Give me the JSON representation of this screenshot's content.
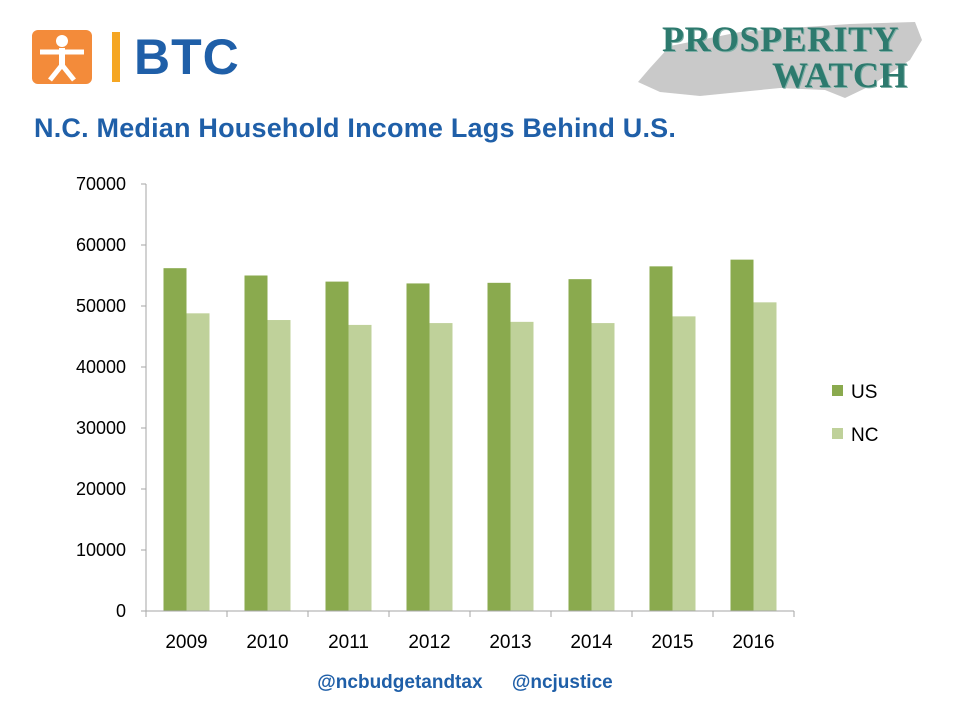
{
  "logo": {
    "text": "BTC"
  },
  "prosperity_watch": {
    "line1": "PROSPERITY",
    "line2": "WATCH"
  },
  "title": "N.C. Median Household Income Lags Behind U.S.",
  "footer": {
    "handle1": "@ncbudgetandtax",
    "handle2": "@ncjustice"
  },
  "colors": {
    "us": "#8aaa4e",
    "nc": "#bfd19a",
    "title": "#1f5fa8",
    "axis": "#a6a6a6"
  },
  "chart_data": {
    "type": "bar",
    "title": "N.C. Median Household Income Lags Behind U.S.",
    "xlabel": "",
    "ylabel": "",
    "categories": [
      "2009",
      "2010",
      "2011",
      "2012",
      "2013",
      "2014",
      "2015",
      "2016"
    ],
    "series": [
      {
        "name": "US",
        "values": [
          56200,
          55000,
          54000,
          53700,
          53800,
          54400,
          56500,
          57600
        ]
      },
      {
        "name": "NC",
        "values": [
          48800,
          47700,
          46900,
          47200,
          47400,
          47200,
          48300,
          50600
        ]
      }
    ],
    "ylim": [
      0,
      70000
    ],
    "yticks": [
      "0",
      "10000",
      "20000",
      "30000",
      "40000",
      "50000",
      "60000",
      "70000"
    ],
    "grid": false,
    "legend_position": "right"
  }
}
